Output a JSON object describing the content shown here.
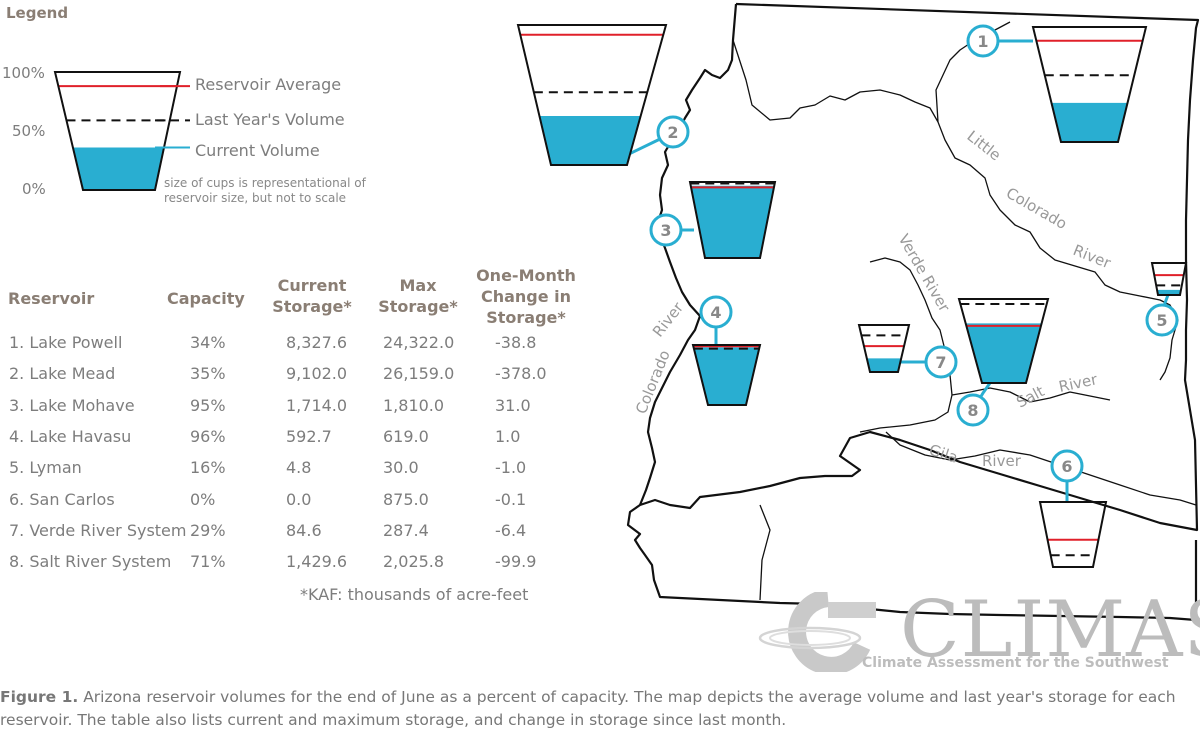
{
  "legend": {
    "title": "Legend",
    "ticks": [
      "100%",
      "50%",
      "0%"
    ],
    "labels": {
      "average": "Reservoir Average",
      "last_year": "Last Year's Volume",
      "current": "Current Volume"
    },
    "note_line1": "size of cups is representational of",
    "note_line2": "reservoir size, but not to scale",
    "colors": {
      "average": "#e0202a",
      "current": "#29aed1",
      "last_year": "#111111"
    }
  },
  "table": {
    "headers": {
      "reservoir": "Reservoir",
      "capacity": "Capacity",
      "current_1": "Current",
      "current_2": "Storage*",
      "max_1": "Max",
      "max_2": "Storage*",
      "change_1": "One-Month",
      "change_2": "Change in",
      "change_3": "Storage*"
    },
    "rows": [
      {
        "name": "1. Lake Powell",
        "capacity": "34%",
        "current": "8,327.6",
        "max": "24,322.0",
        "change": "-38.8"
      },
      {
        "name": "2. Lake Mead",
        "capacity": "35%",
        "current": "9,102.0",
        "max": "26,159.0",
        "change": "-378.0"
      },
      {
        "name": "3. Lake Mohave",
        "capacity": "95%",
        "current": "1,714.0",
        "max": "1,810.0",
        "change": "31.0"
      },
      {
        "name": "4. Lake Havasu",
        "capacity": "96%",
        "current": "592.7",
        "max": "619.0",
        "change": "1.0"
      },
      {
        "name": "5. Lyman",
        "capacity": "16%",
        "current": "4.8",
        "max": "30.0",
        "change": "-1.0"
      },
      {
        "name": "6. San Carlos",
        "capacity": "0%",
        "current": "0.0",
        "max": "875.0",
        "change": "-0.1"
      },
      {
        "name": "7. Verde River System",
        "capacity": "29%",
        "current": "84.6",
        "max": "287.4",
        "change": "-6.4"
      },
      {
        "name": "8. Salt River System",
        "capacity": "71%",
        "current": "1,429.6",
        "max": "2,025.8",
        "change": "-99.9"
      }
    ],
    "footnote": "*KAF: thousands of acre-feet"
  },
  "map": {
    "rivers": {
      "little": "Little",
      "colorado_upper": "Colorado",
      "river_upper": "River",
      "verde": "Verde River",
      "salt": "Salt",
      "salt_river": "River",
      "gila": "Gila",
      "gila_river": "River",
      "colorado_lower": "Colorado",
      "river_lower": "River"
    },
    "markers": [
      "1",
      "2",
      "3",
      "4",
      "5",
      "6",
      "7",
      "8"
    ]
  },
  "chart_data": {
    "type": "table",
    "title": "",
    "columns": [
      "Reservoir",
      "Capacity",
      "Current Storage*",
      "Max Storage*",
      "One-Month Change in Storage*"
    ],
    "reservoirs": [
      {
        "id": 1,
        "name": "Lake Powell",
        "capacity_pct": 34,
        "current": 8327.6,
        "max": 24322.0,
        "change": -38.8,
        "avg_level": 0.88,
        "last_year_level": 0.58
      },
      {
        "id": 2,
        "name": "Lake Mead",
        "capacity_pct": 35,
        "current": 9102.0,
        "max": 26159.0,
        "change": -378.0,
        "avg_level": 0.93,
        "last_year_level": 0.52
      },
      {
        "id": 3,
        "name": "Lake Mohave",
        "capacity_pct": 95,
        "current": 1714.0,
        "max": 1810.0,
        "change": 31.0,
        "avg_level": 0.93,
        "last_year_level": 0.98
      },
      {
        "id": 4,
        "name": "Lake Havasu",
        "capacity_pct": 96,
        "current": 592.7,
        "max": 619.0,
        "change": 1.0,
        "avg_level": 0.98,
        "last_year_level": 0.94
      },
      {
        "id": 5,
        "name": "Lyman",
        "capacity_pct": 16,
        "current": 4.8,
        "max": 30.0,
        "change": -1.0,
        "avg_level": 0.62,
        "last_year_level": 0.3
      },
      {
        "id": 6,
        "name": "San Carlos",
        "capacity_pct": 0,
        "current": 0.0,
        "max": 875.0,
        "change": -0.1,
        "avg_level": 0.42,
        "last_year_level": 0.18
      },
      {
        "id": 7,
        "name": "Verde River System",
        "capacity_pct": 29,
        "current": 84.6,
        "max": 287.4,
        "change": -6.4,
        "avg_level": 0.55,
        "last_year_level": 0.78
      },
      {
        "id": 8,
        "name": "Salt River System",
        "capacity_pct": 71,
        "current": 1429.6,
        "max": 2025.8,
        "change": -99.9,
        "avg_level": 0.68,
        "last_year_level": 0.94
      }
    ]
  },
  "logo": {
    "name": "CLIMAS",
    "tagline": "Climate Assessment for the Southwest"
  },
  "caption": {
    "label": "Figure 1.",
    "text": " Arizona reservoir volumes for the end of June as a percent of capacity. The map depicts the average volume and last year's storage for each reservoir. The table also lists current and maximum storage, and change in storage since last month."
  }
}
